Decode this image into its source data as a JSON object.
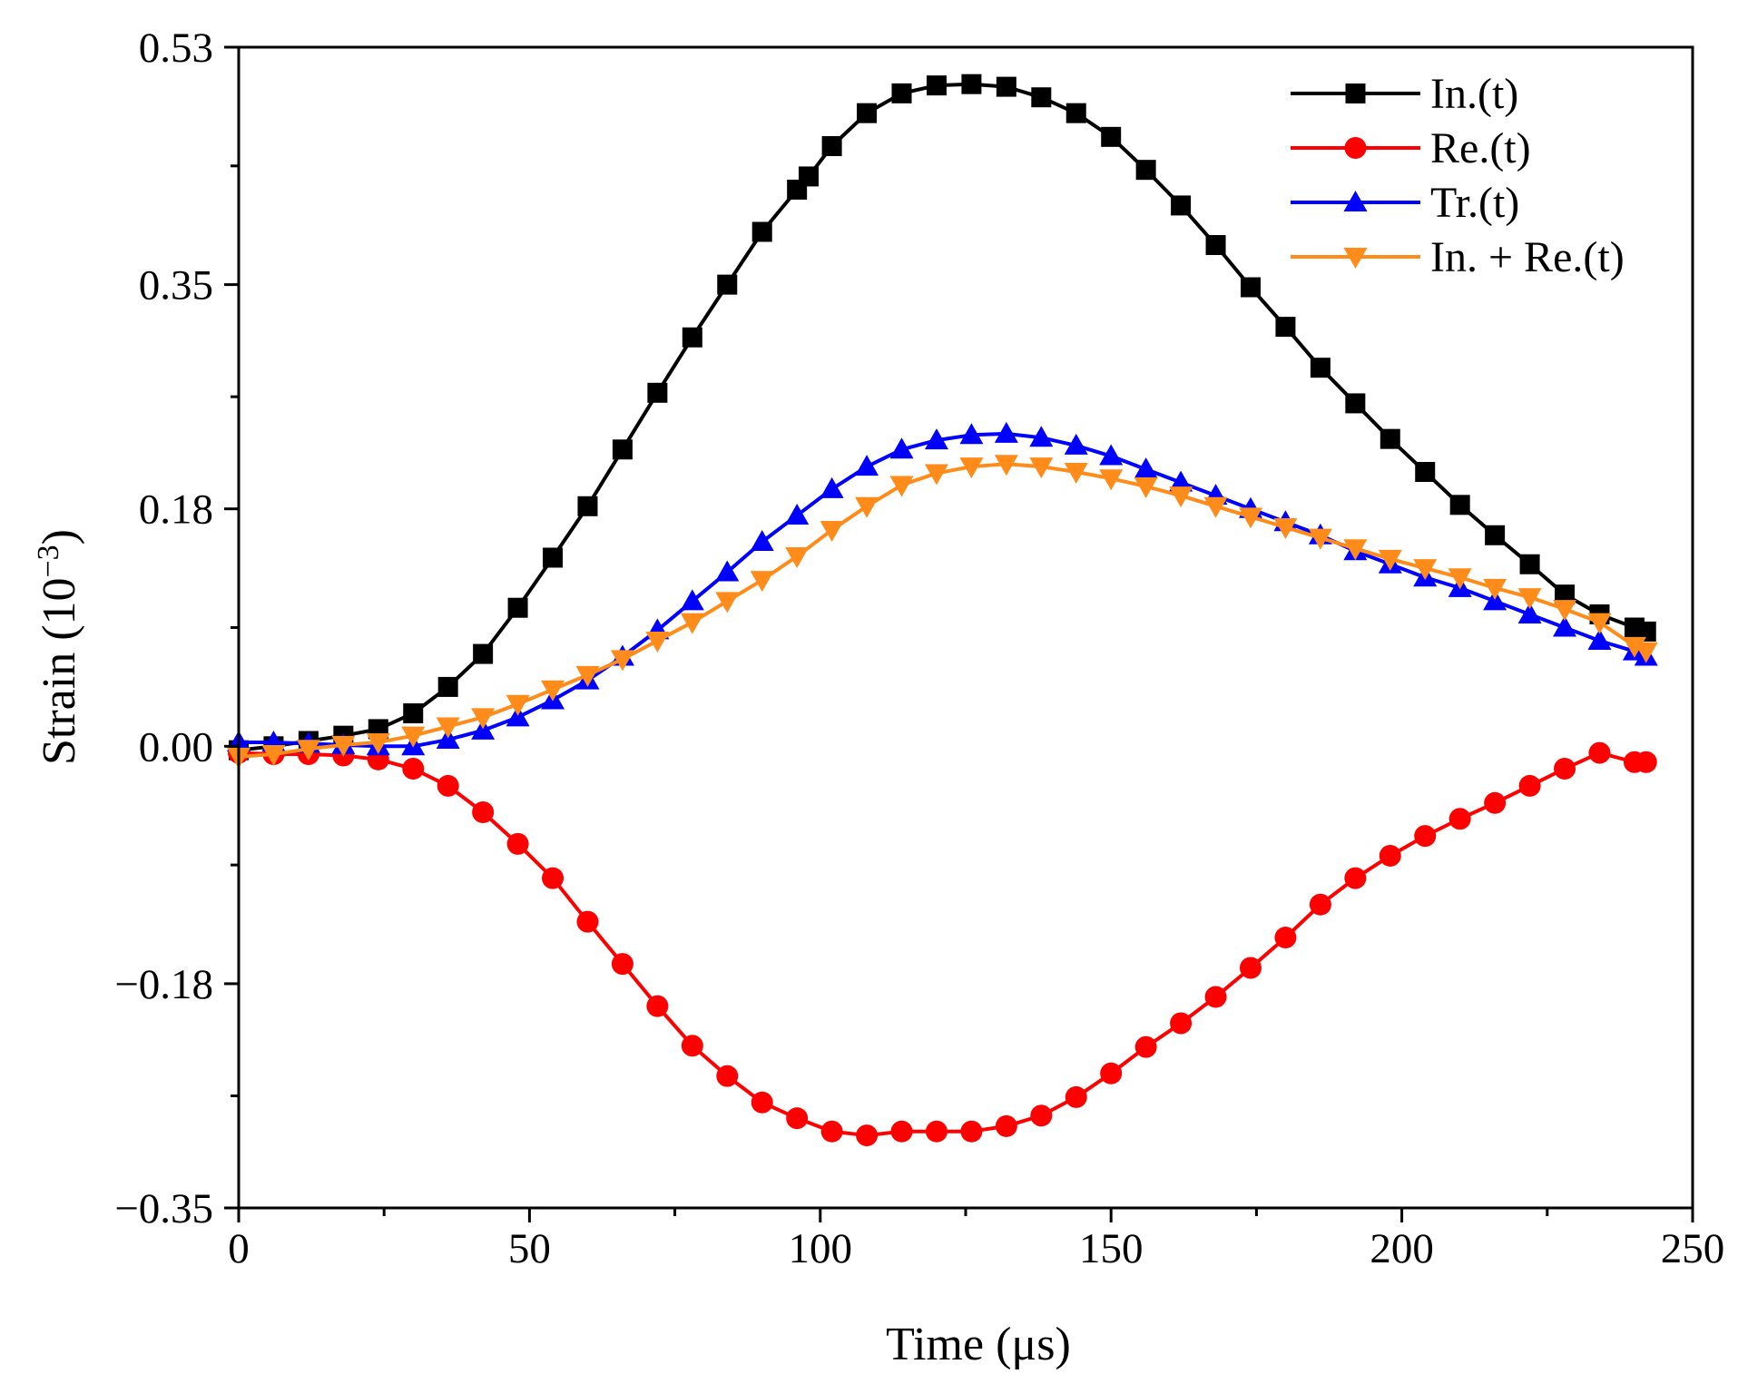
{
  "chart_data": {
    "type": "line",
    "title": "",
    "xlabel": "Time (μs)",
    "ylabel_main": "Strain (10",
    "ylabel_exp": "−3",
    "ylabel_close": ")",
    "xlim": [
      0,
      250
    ],
    "ylim": [
      -0.35,
      0.53
    ],
    "x_ticks": [
      0,
      50,
      100,
      150,
      200,
      250
    ],
    "x_tick_labels": [
      "0",
      "50",
      "100",
      "150",
      "200",
      "250"
    ],
    "y_ticks": [
      -0.35,
      -0.18,
      0.0,
      0.18,
      0.35,
      0.53
    ],
    "y_tick_labels": [
      "−0.35",
      "−0.18",
      "0.00",
      "0.18",
      "0.35",
      "0.53"
    ],
    "legend_position": "top-right",
    "series": [
      {
        "name": "In.(t)",
        "color": "#000000",
        "marker": "square",
        "x": [
          0,
          6,
          12,
          18,
          24,
          30,
          36,
          42,
          48,
          54,
          60,
          66,
          72,
          78,
          84,
          90,
          96,
          98,
          102,
          108,
          114,
          120,
          126,
          132,
          138,
          144,
          150,
          156,
          162,
          168,
          174,
          180,
          186,
          192,
          198,
          204,
          210,
          216,
          222,
          228,
          234,
          240,
          242
        ],
        "values": [
          -0.003,
          0.0,
          0.004,
          0.008,
          0.013,
          0.025,
          0.045,
          0.07,
          0.105,
          0.143,
          0.182,
          0.225,
          0.268,
          0.31,
          0.35,
          0.39,
          0.422,
          0.432,
          0.455,
          0.48,
          0.495,
          0.501,
          0.502,
          0.5,
          0.492,
          0.48,
          0.462,
          0.437,
          0.41,
          0.38,
          0.348,
          0.318,
          0.287,
          0.26,
          0.233,
          0.208,
          0.183,
          0.16,
          0.138,
          0.115,
          0.1,
          0.09,
          0.087
        ]
      },
      {
        "name": "Re.(t)",
        "color": "#ff0000",
        "marker": "circle",
        "x": [
          0,
          6,
          12,
          18,
          24,
          30,
          36,
          42,
          48,
          54,
          60,
          66,
          72,
          78,
          84,
          90,
          96,
          102,
          108,
          114,
          120,
          126,
          132,
          138,
          144,
          150,
          156,
          162,
          168,
          174,
          180,
          186,
          192,
          198,
          204,
          210,
          216,
          222,
          228,
          234,
          240,
          242
        ],
        "values": [
          -0.005,
          -0.006,
          -0.006,
          -0.007,
          -0.01,
          -0.017,
          -0.03,
          -0.05,
          -0.074,
          -0.1,
          -0.133,
          -0.165,
          -0.197,
          -0.227,
          -0.25,
          -0.27,
          -0.282,
          -0.292,
          -0.295,
          -0.292,
          -0.292,
          -0.292,
          -0.288,
          -0.28,
          -0.266,
          -0.248,
          -0.228,
          -0.21,
          -0.19,
          -0.168,
          -0.145,
          -0.12,
          -0.1,
          -0.083,
          -0.068,
          -0.055,
          -0.043,
          -0.03,
          -0.017,
          -0.005,
          -0.012,
          -0.012
        ]
      },
      {
        "name": "Tr.(t)",
        "color": "#0000ff",
        "marker": "triangle-up",
        "x": [
          0,
          6,
          12,
          18,
          24,
          30,
          36,
          42,
          48,
          54,
          60,
          66,
          72,
          78,
          84,
          90,
          96,
          102,
          108,
          114,
          120,
          126,
          132,
          138,
          144,
          150,
          156,
          162,
          168,
          174,
          180,
          186,
          192,
          198,
          204,
          210,
          216,
          222,
          228,
          234,
          240,
          242
        ],
        "values": [
          0.003,
          0.003,
          0.002,
          0.001,
          0.0,
          0.0,
          0.005,
          0.012,
          0.022,
          0.035,
          0.05,
          0.068,
          0.088,
          0.11,
          0.132,
          0.155,
          0.175,
          0.195,
          0.212,
          0.225,
          0.232,
          0.236,
          0.237,
          0.234,
          0.228,
          0.22,
          0.21,
          0.2,
          0.19,
          0.18,
          0.17,
          0.16,
          0.148,
          0.138,
          0.128,
          0.12,
          0.11,
          0.1,
          0.09,
          0.08,
          0.072,
          0.068
        ]
      },
      {
        "name": "In. + Re.(t)",
        "color": "#ff8c1a",
        "marker": "triangle-down",
        "x": [
          0,
          6,
          12,
          18,
          24,
          30,
          36,
          42,
          48,
          54,
          60,
          66,
          72,
          78,
          84,
          90,
          96,
          102,
          108,
          114,
          120,
          126,
          132,
          138,
          144,
          150,
          156,
          162,
          168,
          174,
          180,
          186,
          192,
          198,
          204,
          210,
          216,
          222,
          228,
          234,
          240,
          242
        ],
        "values": [
          -0.008,
          -0.006,
          -0.002,
          0.001,
          0.003,
          0.008,
          0.015,
          0.022,
          0.032,
          0.043,
          0.054,
          0.066,
          0.08,
          0.094,
          0.11,
          0.126,
          0.144,
          0.164,
          0.182,
          0.198,
          0.207,
          0.212,
          0.214,
          0.212,
          0.208,
          0.203,
          0.197,
          0.19,
          0.182,
          0.174,
          0.166,
          0.158,
          0.15,
          0.142,
          0.135,
          0.128,
          0.12,
          0.113,
          0.104,
          0.094,
          0.076,
          0.072
        ]
      }
    ]
  }
}
